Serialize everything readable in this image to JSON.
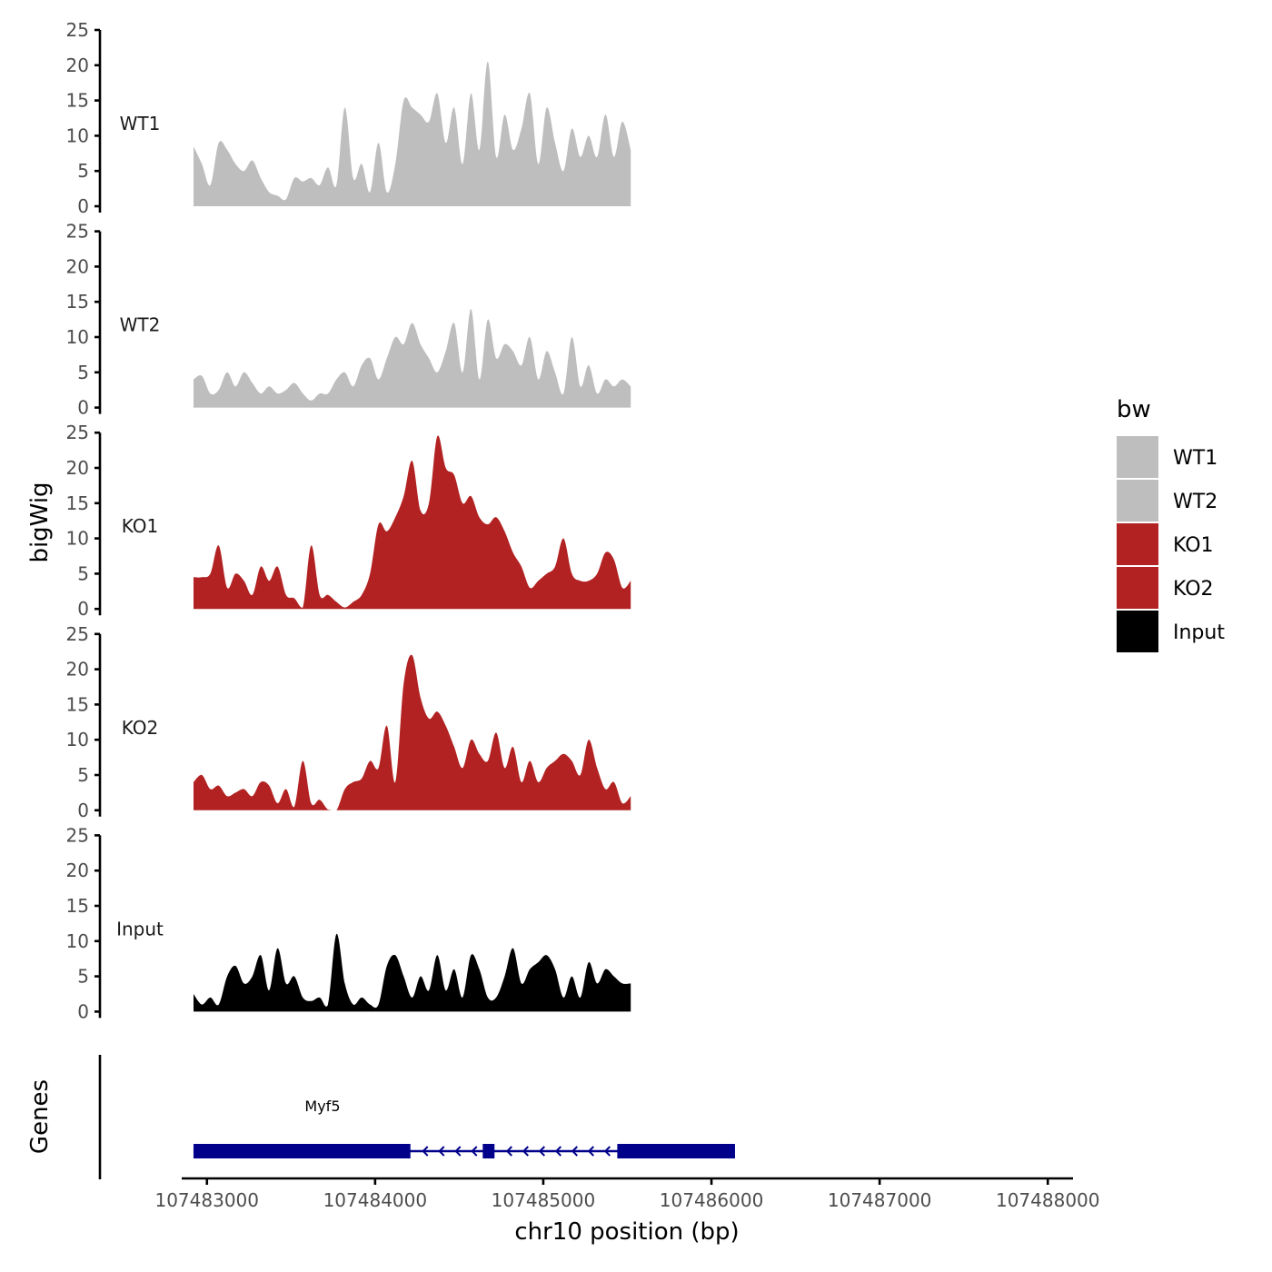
{
  "chart_data": {
    "type": "area",
    "ylabel": "bigWig",
    "xlabel": "chr10 position (bp)",
    "ylim": [
      0,
      25
    ],
    "y_ticks": [
      "0",
      "5",
      "10",
      "15",
      "20",
      "25"
    ],
    "xlim": [
      107482850,
      107488150
    ],
    "x_ticks": [
      {
        "value": 107483000,
        "label": "107483000"
      },
      {
        "value": 107484000,
        "label": "107484000"
      },
      {
        "value": 107485000,
        "label": "107485000"
      },
      {
        "value": 107486000,
        "label": "107486000"
      },
      {
        "value": 107487000,
        "label": "107487000"
      },
      {
        "value": 107488000,
        "label": "107488000"
      }
    ],
    "x_start": 107482920,
    "x_step": 50,
    "series": [
      {
        "name": "WT1",
        "color": "#BEBEBE",
        "values": [
          8.5,
          6,
          3,
          9,
          8,
          6,
          5,
          6.5,
          4,
          2,
          1.5,
          1,
          4,
          3.5,
          4,
          3,
          5.5,
          3,
          14,
          4,
          6,
          2,
          9,
          2,
          6,
          15,
          14,
          13,
          12,
          16,
          9,
          14,
          6,
          16,
          8,
          20.5,
          7,
          13,
          8,
          11,
          16,
          6,
          14,
          9,
          5,
          11,
          7,
          10,
          7,
          13,
          7,
          12,
          8
        ]
      },
      {
        "name": "WT2",
        "color": "#BEBEBE",
        "values": [
          4,
          4.5,
          2,
          2.5,
          5,
          3,
          5,
          3.5,
          2,
          3,
          2,
          2.5,
          3.5,
          2,
          1,
          2,
          2,
          4,
          5,
          3,
          6,
          7,
          4,
          7,
          10,
          9,
          12,
          9,
          7,
          5,
          8,
          12,
          5,
          14,
          4,
          12.5,
          7,
          9,
          8,
          6,
          10,
          4,
          8,
          5,
          2,
          10,
          3,
          6,
          2,
          4,
          3,
          4,
          3
        ]
      },
      {
        "name": "KO1",
        "color": "#B22222",
        "values": [
          4.5,
          4.5,
          5,
          9,
          3,
          5,
          4,
          2,
          6,
          4,
          6,
          2,
          1.5,
          0.2,
          9,
          2,
          2,
          1,
          0.2,
          1,
          2,
          5,
          12,
          11,
          13,
          16,
          21,
          14,
          15,
          24.5,
          20,
          19,
          15,
          16,
          13,
          12,
          13,
          11,
          8,
          6,
          3,
          4,
          5,
          6,
          10,
          5,
          4,
          4,
          5,
          8,
          7,
          3,
          4
        ]
      },
      {
        "name": "KO2",
        "color": "#B22222",
        "values": [
          4,
          5,
          3,
          3.5,
          2,
          2.5,
          3,
          2,
          4,
          3.5,
          1,
          3,
          0.5,
          7,
          1,
          1.5,
          0.1,
          0,
          3,
          4,
          4.5,
          7,
          6,
          12,
          4,
          18,
          22,
          16,
          13,
          14,
          12,
          9,
          6,
          10,
          8,
          7,
          11,
          6,
          9,
          4,
          7,
          4,
          6,
          7,
          8,
          7,
          5,
          10,
          6,
          3,
          4,
          1,
          2
        ]
      },
      {
        "name": "Input",
        "color": "#000000",
        "values": [
          2.5,
          1,
          2,
          1,
          5,
          6.5,
          4,
          5,
          8,
          3,
          9,
          4,
          5,
          2,
          1.5,
          2,
          1,
          11,
          4,
          1,
          2,
          1,
          1,
          6.5,
          8,
          5,
          2,
          5,
          3,
          8,
          3,
          6,
          2,
          8,
          6,
          2,
          2,
          5,
          9,
          4,
          6,
          7,
          8,
          6,
          2,
          5,
          2,
          7,
          4,
          6,
          5,
          4,
          4
        ]
      }
    ],
    "gene": {
      "name": "Myf5",
      "color": "#00008B",
      "strand": "-",
      "start": 107482920,
      "end": 107486140,
      "exons": [
        {
          "start": 107482920,
          "end": 107484210
        },
        {
          "start": 107484640,
          "end": 107484710
        },
        {
          "start": 107485440,
          "end": 107486140
        }
      ]
    },
    "gene_track_label": "Genes",
    "legend": {
      "title": "bw",
      "entries": [
        {
          "label": "WT1",
          "color": "#BEBEBE"
        },
        {
          "label": "WT2",
          "color": "#BEBEBE"
        },
        {
          "label": "KO1",
          "color": "#B22222"
        },
        {
          "label": "KO2",
          "color": "#B22222"
        },
        {
          "label": "Input",
          "color": "#000000"
        }
      ]
    }
  }
}
